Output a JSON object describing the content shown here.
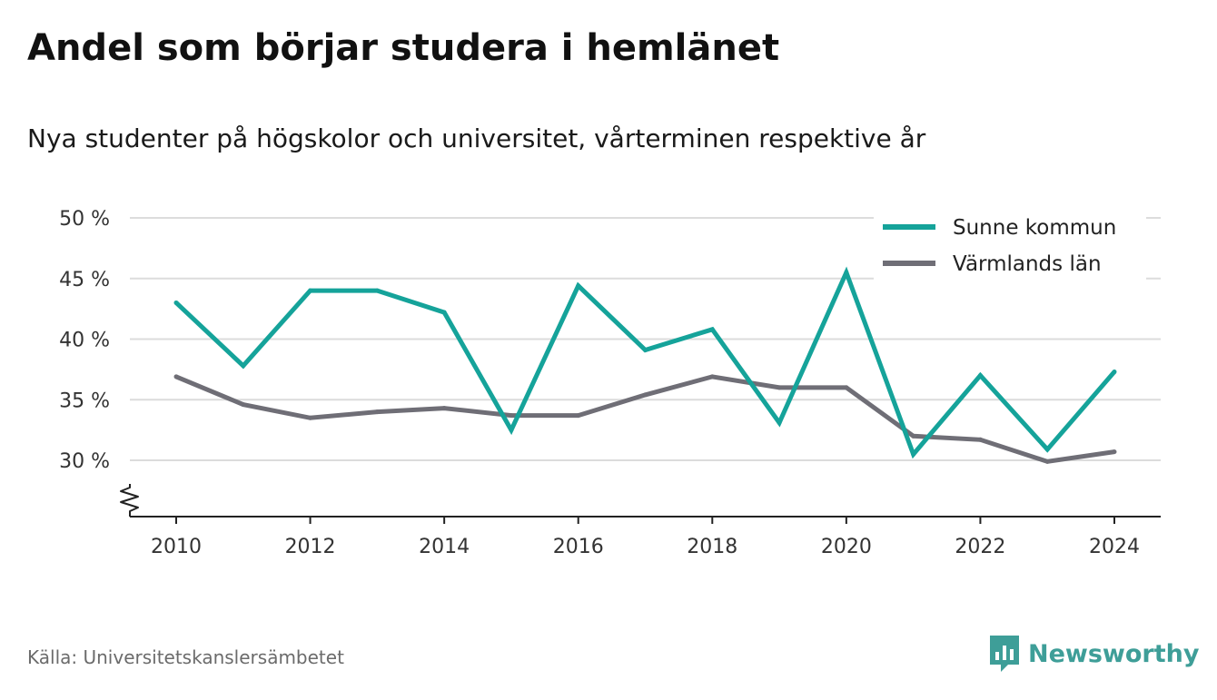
{
  "title": "Andel som börjar studera i hemlänet",
  "subtitle": "Nya studenter på högskolor och universitet, vårterminen respektive år",
  "source": "Källa: Universitetskanslersämbetet",
  "brand": {
    "name": "Newsworthy",
    "color": "#3e9e98",
    "icon": "bar-chart-icon"
  },
  "chart_data": {
    "type": "line",
    "title": "Andel som börjar studera i hemlänet",
    "subtitle": "Nya studenter på högskolor och universitet, vårterminen respektive år",
    "xlabel": "",
    "ylabel": "",
    "x": [
      2010,
      2011,
      2012,
      2013,
      2014,
      2015,
      2016,
      2017,
      2018,
      2019,
      2020,
      2021,
      2022,
      2023,
      2024
    ],
    "x_ticks": [
      "2010",
      "2012",
      "2014",
      "2016",
      "2018",
      "2020",
      "2022",
      "2024"
    ],
    "y_ticks": [
      "30 %",
      "35 %",
      "40 %",
      "45 %",
      "50 %"
    ],
    "y_tick_values": [
      30,
      35,
      40,
      45,
      50
    ],
    "ylim": [
      25.5,
      50
    ],
    "y_axis_break": true,
    "grid": true,
    "legend_position": "top-right",
    "series": [
      {
        "name": "Sunne kommun",
        "color": "#15a39a",
        "values": [
          43.0,
          37.8,
          44.0,
          44.0,
          42.2,
          32.5,
          44.4,
          39.1,
          40.8,
          33.1,
          45.5,
          30.5,
          37.0,
          30.9,
          37.3
        ]
      },
      {
        "name": "Värmlands län",
        "color": "#6f6e76",
        "values": [
          36.9,
          34.6,
          33.5,
          34.0,
          34.3,
          33.7,
          33.7,
          35.4,
          36.9,
          36.0,
          36.0,
          32.0,
          31.7,
          29.9,
          30.7
        ]
      }
    ]
  }
}
